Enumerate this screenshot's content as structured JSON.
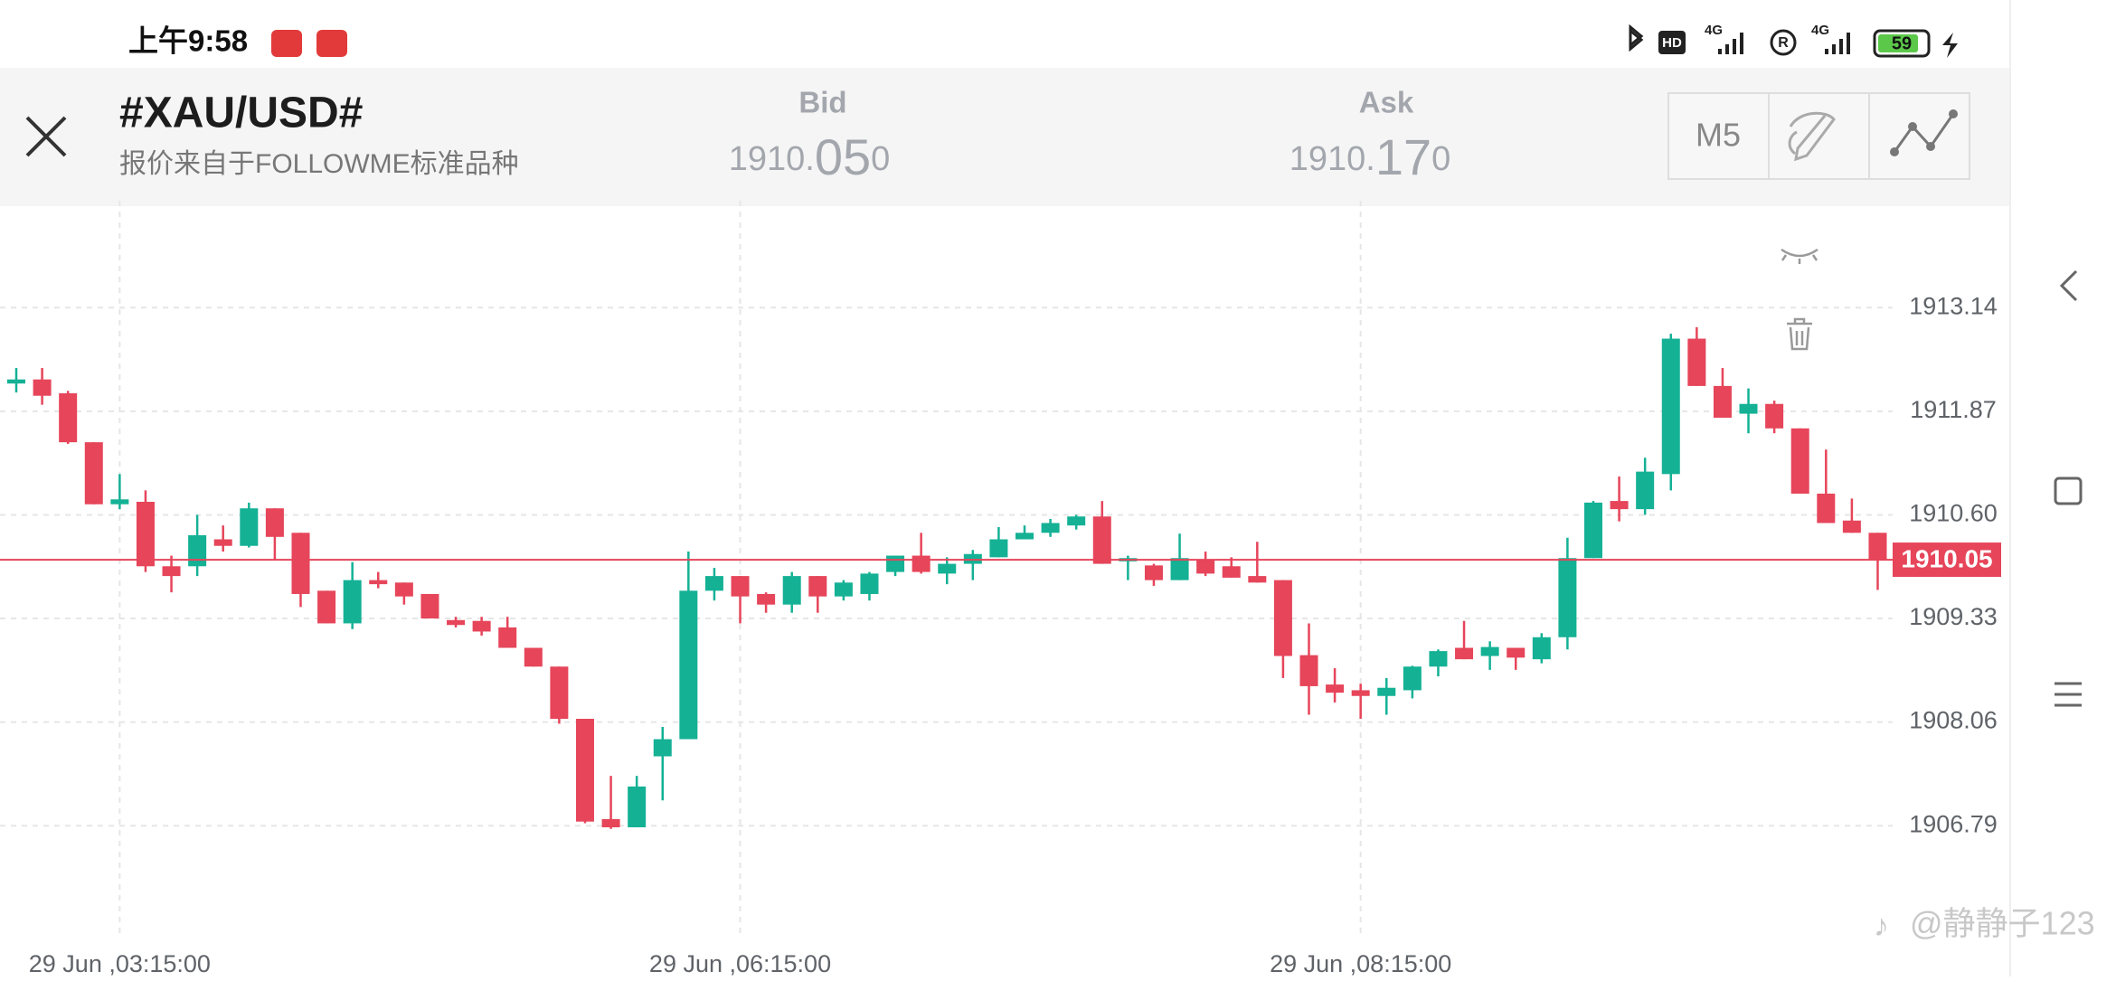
{
  "status_bar": {
    "time": "上午9:58",
    "hd": "HD",
    "net1": "4G",
    "roaming": "R",
    "net2": "4G",
    "battery": "59"
  },
  "header": {
    "symbol": "#XAU/USD#",
    "source": "报价来自于FOLLOWME标准品种",
    "bid": {
      "label": "Bid",
      "parts": [
        "1910.",
        "05",
        "0"
      ]
    },
    "ask": {
      "label": "Ask",
      "parts": [
        "1910.",
        "17",
        "0"
      ]
    },
    "timeframe": "M5"
  },
  "watermark": "@静静子123",
  "chart_data": {
    "type": "candlestick",
    "categories": [
      null,
      null,
      null,
      null,
      "29 Jun ,03:15:00",
      null,
      null,
      null,
      null,
      null,
      null,
      null,
      null,
      null,
      null,
      null,
      null,
      null,
      null,
      null,
      null,
      null,
      null,
      null,
      null,
      null,
      null,
      null,
      "29 Jun ,06:15:00",
      null,
      null,
      null,
      null,
      null,
      null,
      null,
      null,
      null,
      null,
      null,
      null,
      null,
      null,
      null,
      null,
      null,
      null,
      null,
      null,
      null,
      null,
      null,
      "29 Jun ,08:15:00",
      null,
      null,
      null,
      null,
      null,
      null,
      null,
      null,
      null,
      null,
      null,
      null,
      null,
      null,
      null,
      null,
      null,
      null,
      null,
      null
    ],
    "open": [
      1912.21,
      1912.26,
      1912.09,
      1911.49,
      1910.73,
      1910.76,
      1909.97,
      1909.97,
      1910.3,
      1910.22,
      1910.68,
      1910.38,
      1909.67,
      1909.27,
      1909.8,
      1909.77,
      1909.63,
      1909.31,
      1909.3,
      1909.22,
      1908.97,
      1908.74,
      1908.1,
      1906.87,
      1906.77,
      1907.64,
      1907.85,
      1909.67,
      1909.85,
      1909.63,
      1909.5,
      1909.85,
      1909.6,
      1909.63,
      1909.9,
      1910.1,
      1909.88,
      1910.0,
      1910.08,
      1910.3,
      1910.38,
      1910.47,
      1910.58,
      1910.03,
      1909.98,
      1909.8,
      1910.05,
      1909.97,
      1909.85,
      1909.8,
      1908.88,
      1908.52,
      1908.45,
      1908.38,
      1908.45,
      1908.74,
      1908.97,
      1908.87,
      1908.97,
      1908.83,
      1909.1,
      1910.07,
      1910.77,
      1910.67,
      1911.1,
      1912.76,
      1912.18,
      1911.84,
      1911.96,
      1911.66,
      1910.86,
      1910.53,
      1910.38
    ],
    "high": [
      1912.4,
      1912.4,
      1912.12,
      1911.49,
      1911.1,
      1910.9,
      1910.1,
      1910.6,
      1910.47,
      1910.75,
      1910.68,
      1910.38,
      1909.67,
      1910.02,
      1909.9,
      1909.77,
      1909.63,
      1909.35,
      1909.35,
      1909.35,
      1908.97,
      1908.74,
      1908.1,
      1907.4,
      1907.4,
      1908.0,
      1910.15,
      1909.95,
      1909.85,
      1909.65,
      1909.9,
      1909.85,
      1909.8,
      1909.9,
      1910.1,
      1910.38,
      1910.08,
      1910.17,
      1910.45,
      1910.47,
      1910.55,
      1910.6,
      1910.77,
      1910.1,
      1910.0,
      1910.37,
      1910.15,
      1910.08,
      1910.27,
      1909.8,
      1909.27,
      1908.72,
      1908.53,
      1908.6,
      1908.75,
      1908.95,
      1909.3,
      1909.05,
      1908.97,
      1909.15,
      1910.32,
      1910.77,
      1911.07,
      1911.3,
      1912.82,
      1912.9,
      1912.4,
      1912.15,
      1912.0,
      1911.66,
      1911.4,
      1910.8,
      1910.38
    ],
    "low": [
      1912.1,
      1911.95,
      1911.47,
      1910.73,
      1910.67,
      1909.9,
      1909.65,
      1909.85,
      1910.15,
      1910.2,
      1910.05,
      1909.47,
      1909.27,
      1909.2,
      1909.7,
      1909.5,
      1909.33,
      1909.22,
      1909.12,
      1908.97,
      1908.74,
      1908.04,
      1906.82,
      1906.75,
      1906.77,
      1907.1,
      1907.85,
      1909.55,
      1909.27,
      1909.4,
      1909.4,
      1909.4,
      1909.55,
      1909.55,
      1909.85,
      1909.88,
      1909.75,
      1909.8,
      1910.08,
      1910.3,
      1910.33,
      1910.42,
      1910.0,
      1909.8,
      1909.73,
      1909.8,
      1909.85,
      1909.83,
      1909.77,
      1908.6,
      1908.15,
      1908.3,
      1908.1,
      1908.15,
      1908.35,
      1908.62,
      1908.83,
      1908.7,
      1908.7,
      1908.78,
      1908.95,
      1910.07,
      1910.52,
      1910.6,
      1910.9,
      1912.18,
      1911.79,
      1911.6,
      1911.6,
      1910.86,
      1910.5,
      1910.38,
      1909.68
    ],
    "close": [
      1912.26,
      1912.06,
      1911.49,
      1910.73,
      1910.79,
      1909.97,
      1909.85,
      1910.35,
      1910.22,
      1910.68,
      1910.33,
      1909.63,
      1909.27,
      1909.8,
      1909.75,
      1909.6,
      1909.33,
      1909.25,
      1909.17,
      1908.97,
      1908.74,
      1908.1,
      1906.84,
      1906.77,
      1907.27,
      1907.85,
      1909.67,
      1909.85,
      1909.6,
      1909.5,
      1909.85,
      1909.6,
      1909.77,
      1909.88,
      1910.1,
      1909.9,
      1910.0,
      1910.12,
      1910.3,
      1910.38,
      1910.5,
      1910.58,
      1910.0,
      1910.07,
      1909.8,
      1910.07,
      1909.88,
      1909.83,
      1909.77,
      1908.87,
      1908.5,
      1908.42,
      1908.38,
      1908.48,
      1908.74,
      1908.93,
      1908.83,
      1908.98,
      1908.85,
      1909.1,
      1910.07,
      1910.75,
      1910.67,
      1911.13,
      1912.76,
      1912.18,
      1911.79,
      1911.96,
      1911.66,
      1910.86,
      1910.5,
      1910.38,
      1910.05
    ],
    "up_color": "#14b195",
    "down_color": "#e6455a",
    "last_price": 1910.05,
    "ylim": [
      1905.44,
      1914.34
    ],
    "yticks": [
      1906.79,
      1908.06,
      1909.33,
      {
        "value": 1910.6,
        "label": "1910.60"
      },
      1911.87,
      1913.14
    ],
    "grid": true
  }
}
